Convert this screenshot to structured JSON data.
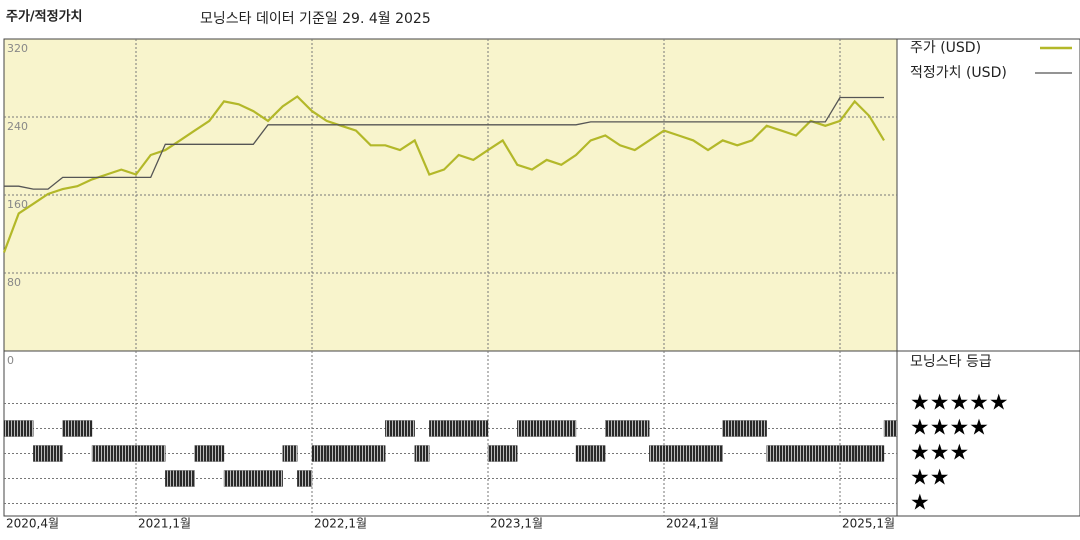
{
  "chart_data": [
    {
      "type": "line",
      "title": "주가/적정가치",
      "subtitle": "모닝스타 데이터 기준일 29. 4월 2025",
      "x": [
        "2020-04",
        "2020-05",
        "2020-06",
        "2020-07",
        "2020-08",
        "2020-09",
        "2020-10",
        "2020-11",
        "2020-12",
        "2021-01",
        "2021-02",
        "2021-03",
        "2021-04",
        "2021-05",
        "2021-06",
        "2021-07",
        "2021-08",
        "2021-09",
        "2021-10",
        "2021-11",
        "2021-12",
        "2022-01",
        "2022-02",
        "2022-03",
        "2022-04",
        "2022-05",
        "2022-06",
        "2022-07",
        "2022-08",
        "2022-09",
        "2022-10",
        "2022-11",
        "2022-12",
        "2023-01",
        "2023-02",
        "2023-03",
        "2023-04",
        "2023-05",
        "2023-06",
        "2023-07",
        "2023-08",
        "2023-09",
        "2023-10",
        "2023-11",
        "2023-12",
        "2024-01",
        "2024-02",
        "2024-03",
        "2024-04",
        "2024-05",
        "2024-06",
        "2024-07",
        "2024-08",
        "2024-09",
        "2024-10",
        "2024-11",
        "2024-12",
        "2025-01",
        "2025-02",
        "2025-03",
        "2025-04"
      ],
      "series": [
        {
          "name": "주가 (USD)",
          "color": "#b3b829",
          "values": [
            101,
            141,
            151,
            161,
            166,
            169,
            176,
            181,
            186,
            181,
            201,
            206,
            216,
            226,
            236,
            256,
            253,
            246,
            236,
            251,
            261,
            246,
            236,
            231,
            226,
            211,
            211,
            206,
            216,
            181,
            186,
            201,
            196,
            206,
            216,
            191,
            186,
            196,
            191,
            201,
            216,
            221,
            211,
            206,
            216,
            226,
            221,
            216,
            206,
            216,
            211,
            216,
            231,
            226,
            221,
            236,
            231,
            236,
            256,
            241,
            216
          ]
        },
        {
          "name": "적정가치 (USD)",
          "color": "#555555",
          "values": [
            169,
            169,
            166,
            166,
            178,
            178,
            178,
            178,
            178,
            178,
            178,
            212,
            212,
            212,
            212,
            212,
            212,
            212,
            232,
            232,
            232,
            232,
            232,
            232,
            232,
            232,
            232,
            232,
            232,
            232,
            232,
            232,
            232,
            232,
            232,
            232,
            232,
            232,
            232,
            232,
            235,
            235,
            235,
            235,
            235,
            235,
            235,
            235,
            235,
            235,
            235,
            235,
            235,
            235,
            235,
            235,
            235,
            260,
            260,
            260,
            260
          ]
        }
      ],
      "ylim": [
        0,
        320
      ],
      "yticks": [
        0,
        80,
        160,
        240,
        320
      ],
      "xticks": [
        {
          "value": "2020-04",
          "label": "2020,4월"
        },
        {
          "value": "2021-01",
          "label": "2021,1월"
        },
        {
          "value": "2022-01",
          "label": "2022,1월"
        },
        {
          "value": "2023-01",
          "label": "2023,1월"
        },
        {
          "value": "2024-01",
          "label": "2024,1월"
        },
        {
          "value": "2025-01",
          "label": "2025,1월"
        }
      ],
      "grid": true
    },
    {
      "type": "timeline",
      "title": "모닝스타 등급",
      "x": [
        "2020-04",
        "2020-05",
        "2020-06",
        "2020-07",
        "2020-08",
        "2020-09",
        "2020-10",
        "2020-11",
        "2020-12",
        "2021-01",
        "2021-02",
        "2021-03",
        "2021-04",
        "2021-05",
        "2021-06",
        "2021-07",
        "2021-08",
        "2021-09",
        "2021-10",
        "2021-11",
        "2021-12",
        "2022-01",
        "2022-02",
        "2022-03",
        "2022-04",
        "2022-05",
        "2022-06",
        "2022-07",
        "2022-08",
        "2022-09",
        "2022-10",
        "2022-11",
        "2022-12",
        "2023-01",
        "2023-02",
        "2023-03",
        "2023-04",
        "2023-05",
        "2023-06",
        "2023-07",
        "2023-08",
        "2023-09",
        "2023-10",
        "2023-11",
        "2023-12",
        "2024-01",
        "2024-02",
        "2024-03",
        "2024-04",
        "2024-05",
        "2024-06",
        "2024-07",
        "2024-08",
        "2024-09",
        "2024-10",
        "2024-11",
        "2024-12",
        "2025-01",
        "2025-02",
        "2025-03",
        "2025-04"
      ],
      "values": [
        4,
        4,
        3,
        3,
        4,
        4,
        3,
        3,
        3,
        3,
        3,
        2,
        2,
        3,
        3,
        2,
        2,
        2,
        2,
        3,
        2,
        3,
        3,
        3,
        3,
        3,
        4,
        4,
        3,
        4,
        4,
        4,
        4,
        3,
        3,
        4,
        4,
        4,
        4,
        3,
        3,
        4,
        4,
        4,
        3,
        3,
        3,
        3,
        3,
        4,
        4,
        4,
        3,
        3,
        3,
        3,
        3,
        3,
        3,
        3,
        4
      ],
      "color": "#222222",
      "ylim": [
        0.5,
        5.5
      ],
      "yticks": [
        {
          "value": 5,
          "label": "★★★★★"
        },
        {
          "value": 4,
          "label": "★★★★"
        },
        {
          "value": 3,
          "label": "★★★"
        },
        {
          "value": 2,
          "label": "★★"
        },
        {
          "value": 1,
          "label": "★"
        }
      ]
    }
  ]
}
